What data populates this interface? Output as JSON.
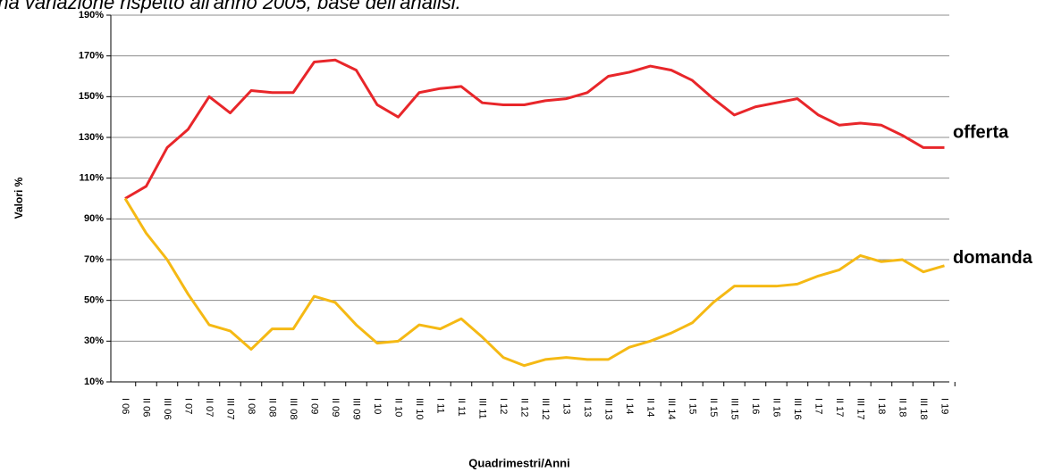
{
  "chart_data": {
    "type": "line",
    "title": "rna variazione rispetto all'anno 2005, base dell'analisi.",
    "y_label": "Valori %",
    "x_label": "Quadrimestri/Anni",
    "categories": [
      "I 06",
      "II 06",
      "III 06",
      "I 07",
      "II 07",
      "III 07",
      "I 08",
      "II 08",
      "III 08",
      "I 09",
      "II 09",
      "III 09",
      "I 10",
      "II 10",
      "III 10",
      "I 11",
      "II 11",
      "III 11",
      "I 12",
      "II 12",
      "III 12",
      "I 13",
      "II 13",
      "III 13",
      "I 14",
      "II 14",
      "III 14",
      "I 15",
      "II 15",
      "III 15",
      "I 16",
      "II 16",
      "III 16",
      "I 17",
      "II 17",
      "III 17",
      "I 18",
      "II 18",
      "III 18",
      "I 19"
    ],
    "series": [
      {
        "name": "offerta",
        "color": "#e8262a",
        "values": [
          100,
          106,
          125,
          134,
          150,
          142,
          153,
          152,
          152,
          167,
          168,
          163,
          146,
          140,
          152,
          154,
          155,
          147,
          146,
          146,
          148,
          149,
          152,
          160,
          162,
          165,
          163,
          158,
          149,
          141,
          145,
          147,
          149,
          141,
          136,
          137,
          136,
          131,
          125,
          125
        ]
      },
      {
        "name": "domanda",
        "color": "#f5b914",
        "values": [
          100,
          83,
          70,
          53,
          38,
          35,
          26,
          36,
          36,
          52,
          49,
          38,
          29,
          30,
          38,
          36,
          41,
          32,
          22,
          18,
          21,
          22,
          21,
          21,
          27,
          30,
          34,
          39,
          49,
          57,
          57,
          57,
          58,
          62,
          65,
          72,
          69,
          70,
          64,
          67
        ]
      }
    ],
    "ylim": [
      10,
      190
    ],
    "yticks": [
      {
        "value": 10,
        "label": "10%"
      },
      {
        "value": 30,
        "label": "30%"
      },
      {
        "value": 50,
        "label": "50%"
      },
      {
        "value": 70,
        "label": "70%"
      },
      {
        "value": 90,
        "label": "90%"
      },
      {
        "value": 110,
        "label": "110%"
      },
      {
        "value": 130,
        "label": "130%"
      },
      {
        "value": 150,
        "label": "150%"
      },
      {
        "value": 170,
        "label": "170%"
      },
      {
        "value": 190,
        "label": "190%"
      }
    ],
    "grid": true
  }
}
